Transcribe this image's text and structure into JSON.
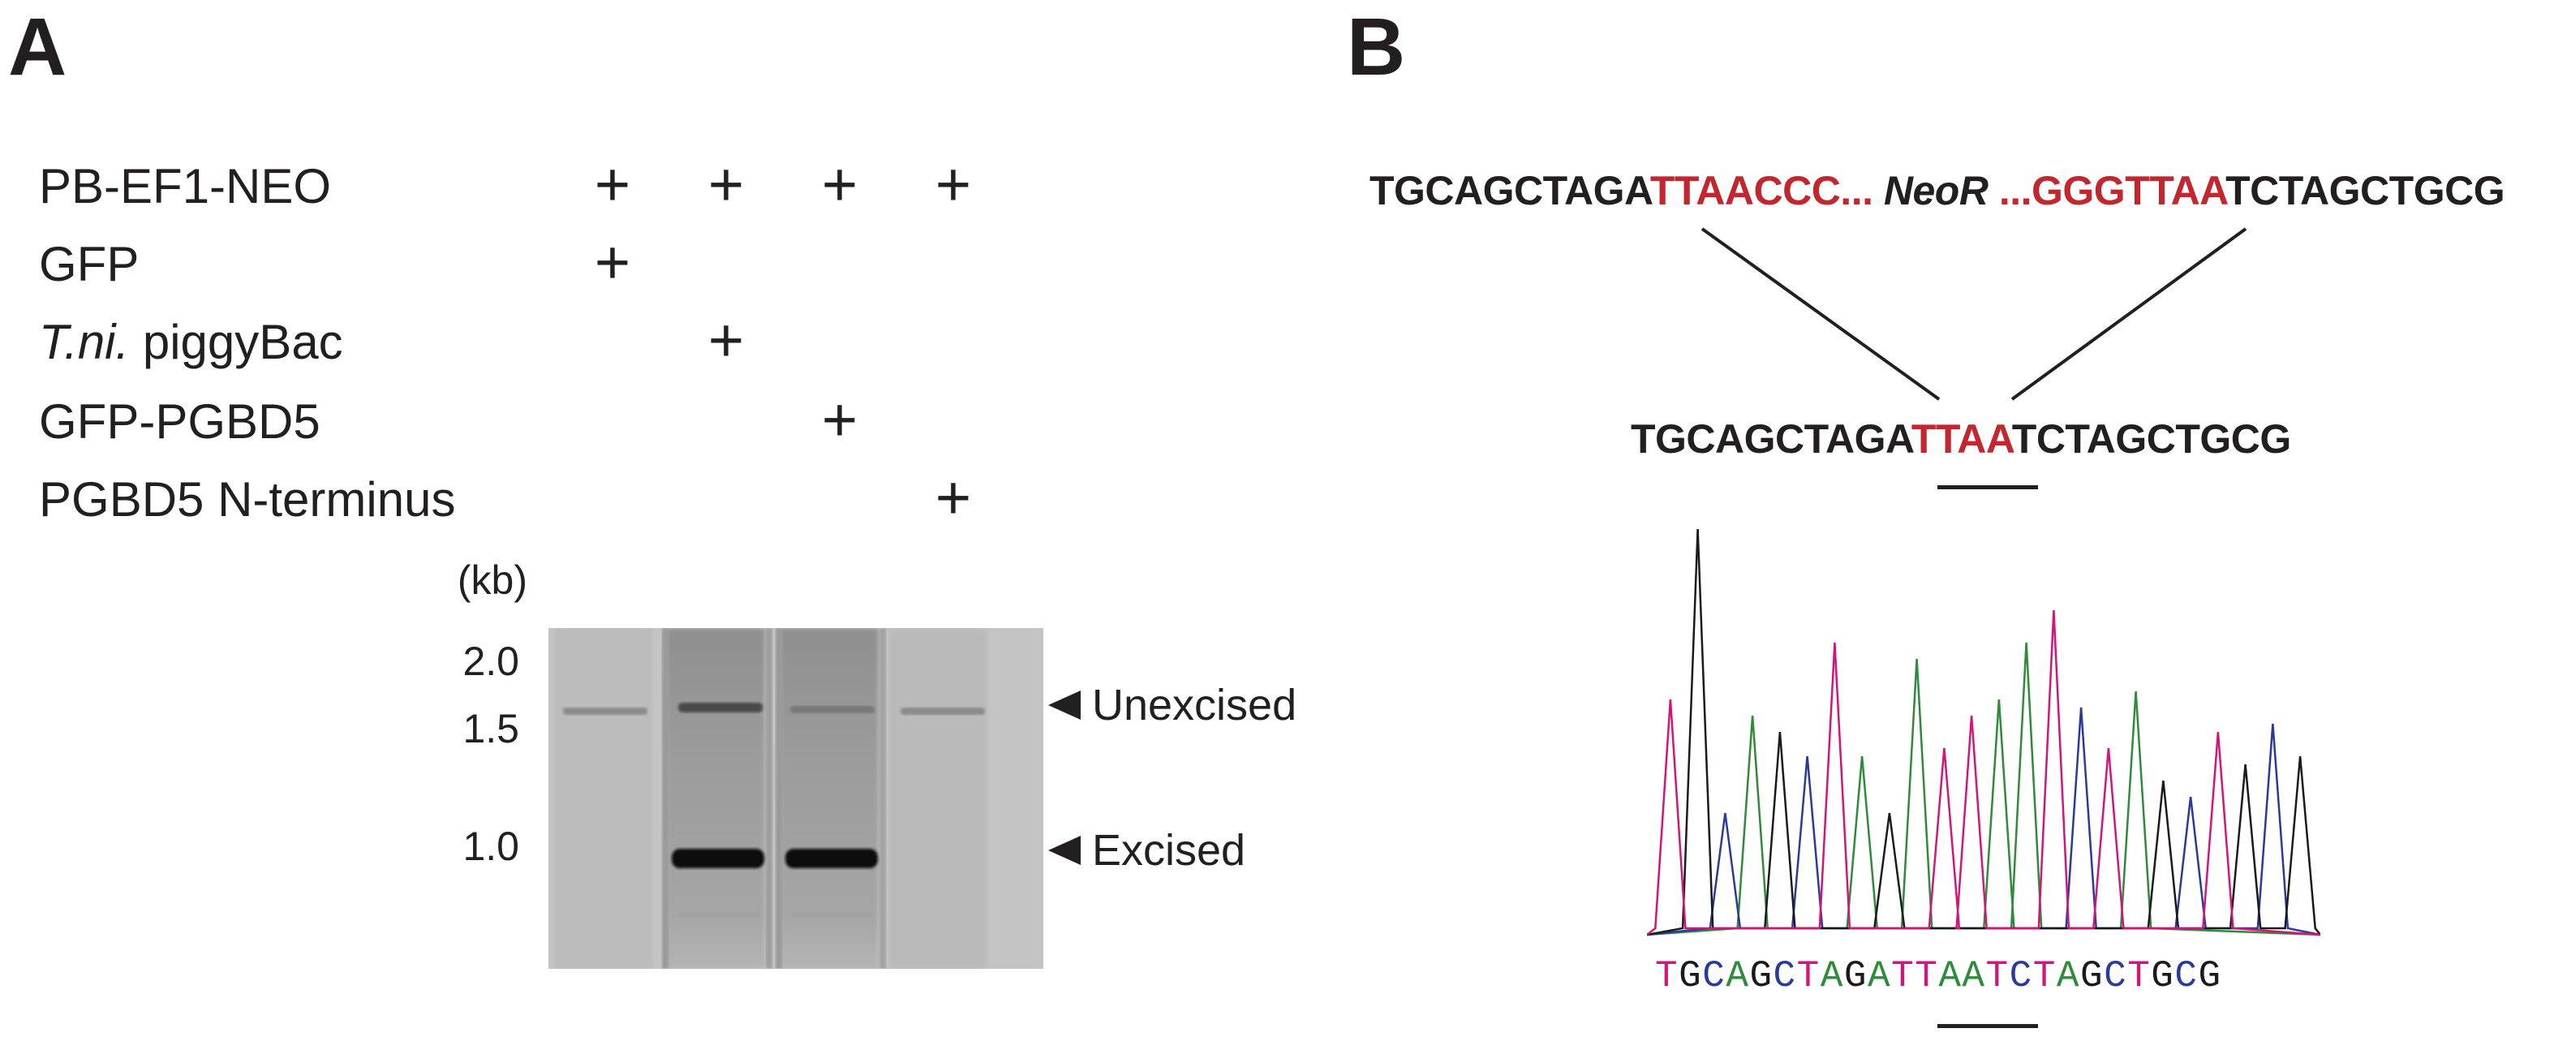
{
  "panel_a": {
    "letter": "A",
    "rows": [
      {
        "label": "PB-EF1-NEO",
        "marks": [
          "+",
          "+",
          "+",
          "+"
        ]
      },
      {
        "label": "GFP",
        "marks": [
          "+",
          "",
          "",
          ""
        ]
      },
      {
        "label_italic": "T.ni.",
        "label": " piggyBac",
        "marks": [
          "",
          "+",
          "",
          ""
        ]
      },
      {
        "label": "GFP-PGBD5",
        "marks": [
          "",
          "",
          "+",
          ""
        ]
      },
      {
        "label": "PGBD5 N-terminus",
        "marks": [
          "",
          "",
          "",
          "+"
        ]
      }
    ],
    "ladder_unit": "(kb)",
    "ladder": [
      "2.0",
      "1.5",
      "1.0"
    ],
    "bands": {
      "unexcised": "Unexcised",
      "excised": "Excised"
    }
  },
  "panel_b": {
    "letter": "B",
    "top_seq": {
      "left_black": "TGCAGCTAGA",
      "left_red": "TTAACCC...",
      "middle_italic": " NeoR ",
      "right_red": "...GGGTTAA",
      "right_black": "TCTAGCTGCG"
    },
    "mid_seq": {
      "left_black": "TGCAGCTAGA",
      "red": "TTAA",
      "right_black": "TCTAGCTGCG"
    },
    "chromatogram_bases": "TGCAGCTAGATTAATCTAGCTGCG",
    "base_colors": {
      "A": "#2e8b3a",
      "C": "#2a3a9c",
      "G": "#1a1a1a",
      "T": "#d4147a"
    }
  }
}
